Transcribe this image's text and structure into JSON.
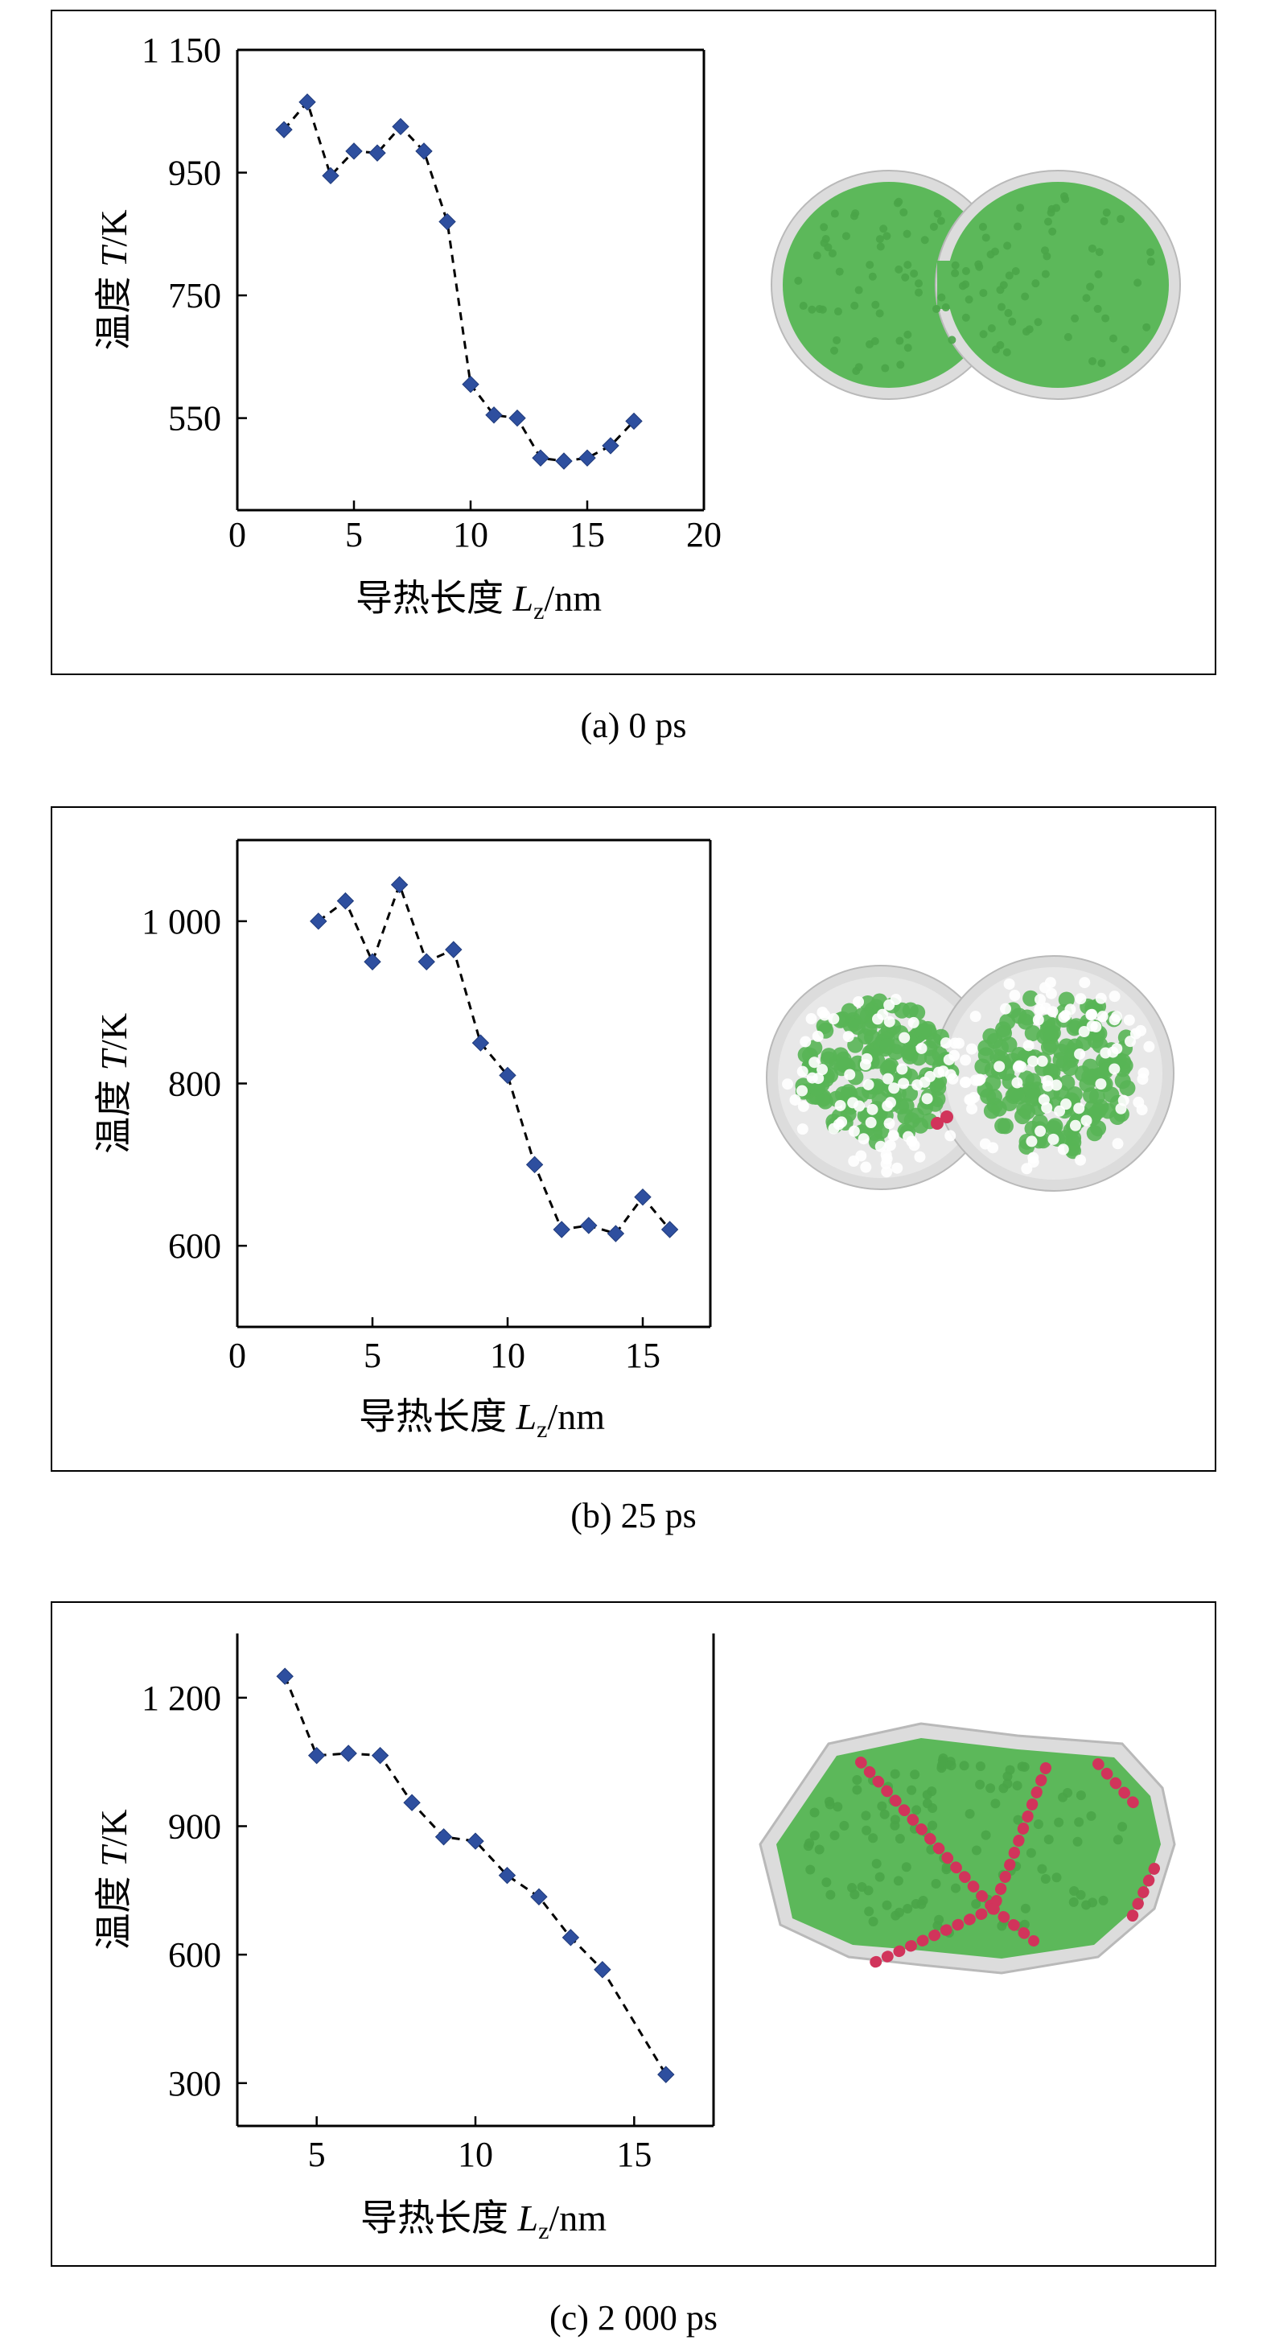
{
  "panels": [
    {
      "caption": "(a) 0 ps",
      "chart_data": {
        "type": "scatter",
        "xlabel": {
          "main": "导热长度 ",
          "var": "L",
          "sub": "z",
          "unit": "/nm"
        },
        "ylabel": {
          "main": "温度 ",
          "var": "T",
          "unit": "/K"
        },
        "xlim": [
          0,
          20
        ],
        "ylim": [
          400,
          1150
        ],
        "xticks": [
          0,
          5,
          10,
          15,
          20
        ],
        "yticks": [
          550,
          750,
          950,
          1150
        ],
        "ytick_labels": [
          "550",
          "750",
          "950",
          "1 150"
        ],
        "frame": "full",
        "x": [
          2,
          3,
          4,
          5,
          6,
          7,
          8,
          9,
          10,
          11,
          12,
          13,
          14,
          15,
          16,
          17
        ],
        "y": [
          1020,
          1065,
          945,
          985,
          982,
          1025,
          985,
          870,
          605,
          555,
          550,
          485,
          480,
          485,
          505,
          545
        ],
        "marker_color": "#2e4f9f",
        "line_style": "dashed"
      },
      "structure": {
        "grains": "green",
        "boundaries": "none"
      }
    },
    {
      "caption": "(b) 25 ps",
      "chart_data": {
        "type": "scatter",
        "xlabel": {
          "main": "导热长度 ",
          "var": "L",
          "sub": "z",
          "unit": "/nm"
        },
        "ylabel": {
          "main": "温度 ",
          "var": "T",
          "unit": "/K"
        },
        "xlim": [
          0,
          17.5
        ],
        "ylim": [
          500,
          1100
        ],
        "xticks": [
          0,
          5,
          10,
          15
        ],
        "yticks": [
          600,
          800,
          1000
        ],
        "ytick_labels": [
          "600",
          "800",
          "1 000"
        ],
        "frame": "full",
        "x": [
          3,
          4,
          5,
          6,
          7,
          8,
          9,
          10,
          11,
          12,
          13,
          14,
          15,
          16
        ],
        "y": [
          1000,
          1025,
          950,
          1045,
          950,
          965,
          850,
          810,
          700,
          620,
          625,
          615,
          660,
          620
        ],
        "marker_color": "#2e4f9f",
        "line_style": "dashed"
      },
      "structure": {
        "grains": "green-disordered",
        "boundaries": "few"
      }
    },
    {
      "caption": "(c) 2 000 ps",
      "chart_data": {
        "type": "scatter",
        "xlabel": {
          "main": "导热长度 ",
          "var": "L",
          "sub": "z",
          "unit": "/nm"
        },
        "ylabel": {
          "main": "温度 ",
          "var": "T",
          "unit": "/K"
        },
        "xlim": [
          2.5,
          17.5
        ],
        "ylim": [
          200,
          1350
        ],
        "xticks": [
          5,
          10,
          15
        ],
        "yticks": [
          300,
          600,
          900,
          1200
        ],
        "ytick_labels": [
          "300",
          "600",
          "900",
          "1 200"
        ],
        "frame": "box-open",
        "x": [
          4,
          5,
          6,
          7,
          8,
          9,
          10,
          11,
          12,
          13,
          14,
          16
        ],
        "y": [
          1250,
          1065,
          1070,
          1065,
          955,
          875,
          865,
          785,
          735,
          640,
          565,
          320
        ],
        "marker_color": "#2e4f9f",
        "line_style": "dashed"
      },
      "structure": {
        "grains": "green",
        "boundaries": "red"
      }
    }
  ]
}
